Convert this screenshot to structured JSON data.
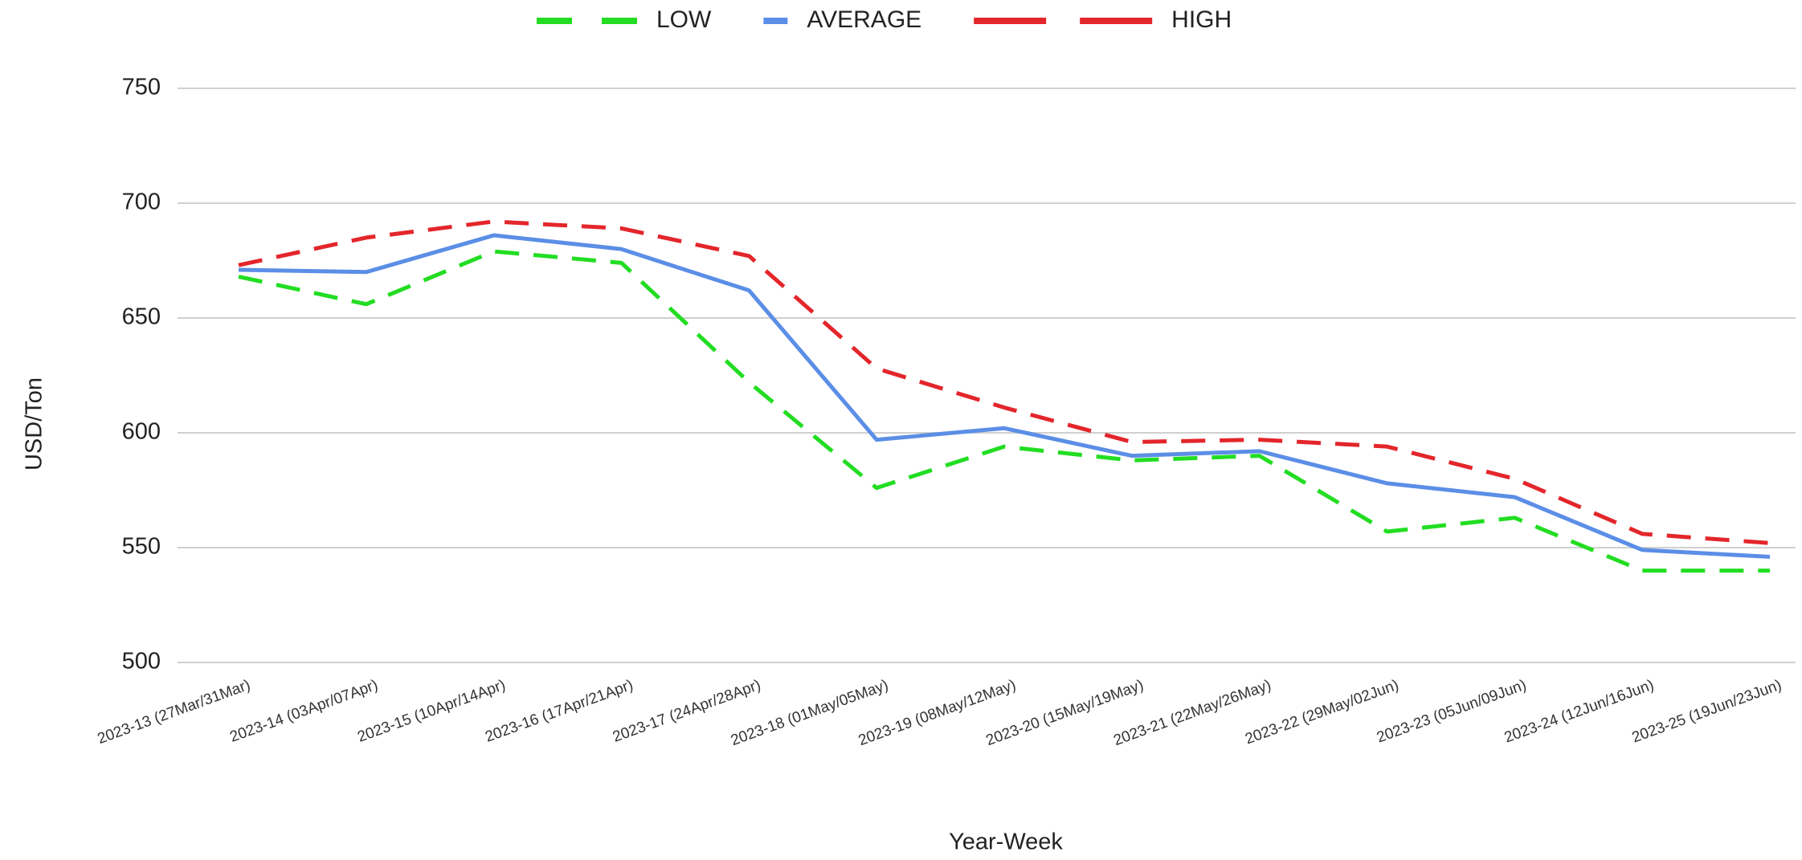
{
  "chart_data": {
    "type": "line",
    "categories": [
      "2023-13 (27Mar/31Mar)",
      "2023-14 (03Apr/07Apr)",
      "2023-15 (10Apr/14Apr)",
      "2023-16 (17Apr/21Apr)",
      "2023-17 (24Apr/28Apr)",
      "2023-18 (01May/05May)",
      "2023-19 (08May/12May)",
      "2023-20 (15May/19May)",
      "2023-21 (22May/26May)",
      "2023-22 (29May/02Jun)",
      "2023-23 (05Jun/09Jun)",
      "2023-24 (12Jun/16Jun)",
      "2023-25 (19Jun/23Jun)"
    ],
    "series": [
      {
        "name": "LOW",
        "color": "#22dd22",
        "dashed": true,
        "values": [
          668,
          656,
          679,
          674,
          622,
          576,
          594,
          588,
          590,
          557,
          563,
          540,
          540
        ]
      },
      {
        "name": "AVERAGE",
        "color": "#5b8ee6",
        "dashed": false,
        "values": [
          671,
          670,
          686,
          680,
          662,
          597,
          602,
          590,
          592,
          578,
          572,
          549,
          546
        ]
      },
      {
        "name": "HIGH",
        "color": "#e3262b",
        "dashed": true,
        "values": [
          673,
          685,
          692,
          689,
          677,
          628,
          611,
          596,
          597,
          594,
          580,
          556,
          552
        ]
      }
    ],
    "ylim": [
      500,
      750
    ],
    "yticks": [
      500,
      550,
      600,
      650,
      700,
      750
    ],
    "grid": true,
    "x_label": "Year-Week",
    "y_label": "USD/Ton",
    "legend": "top"
  }
}
